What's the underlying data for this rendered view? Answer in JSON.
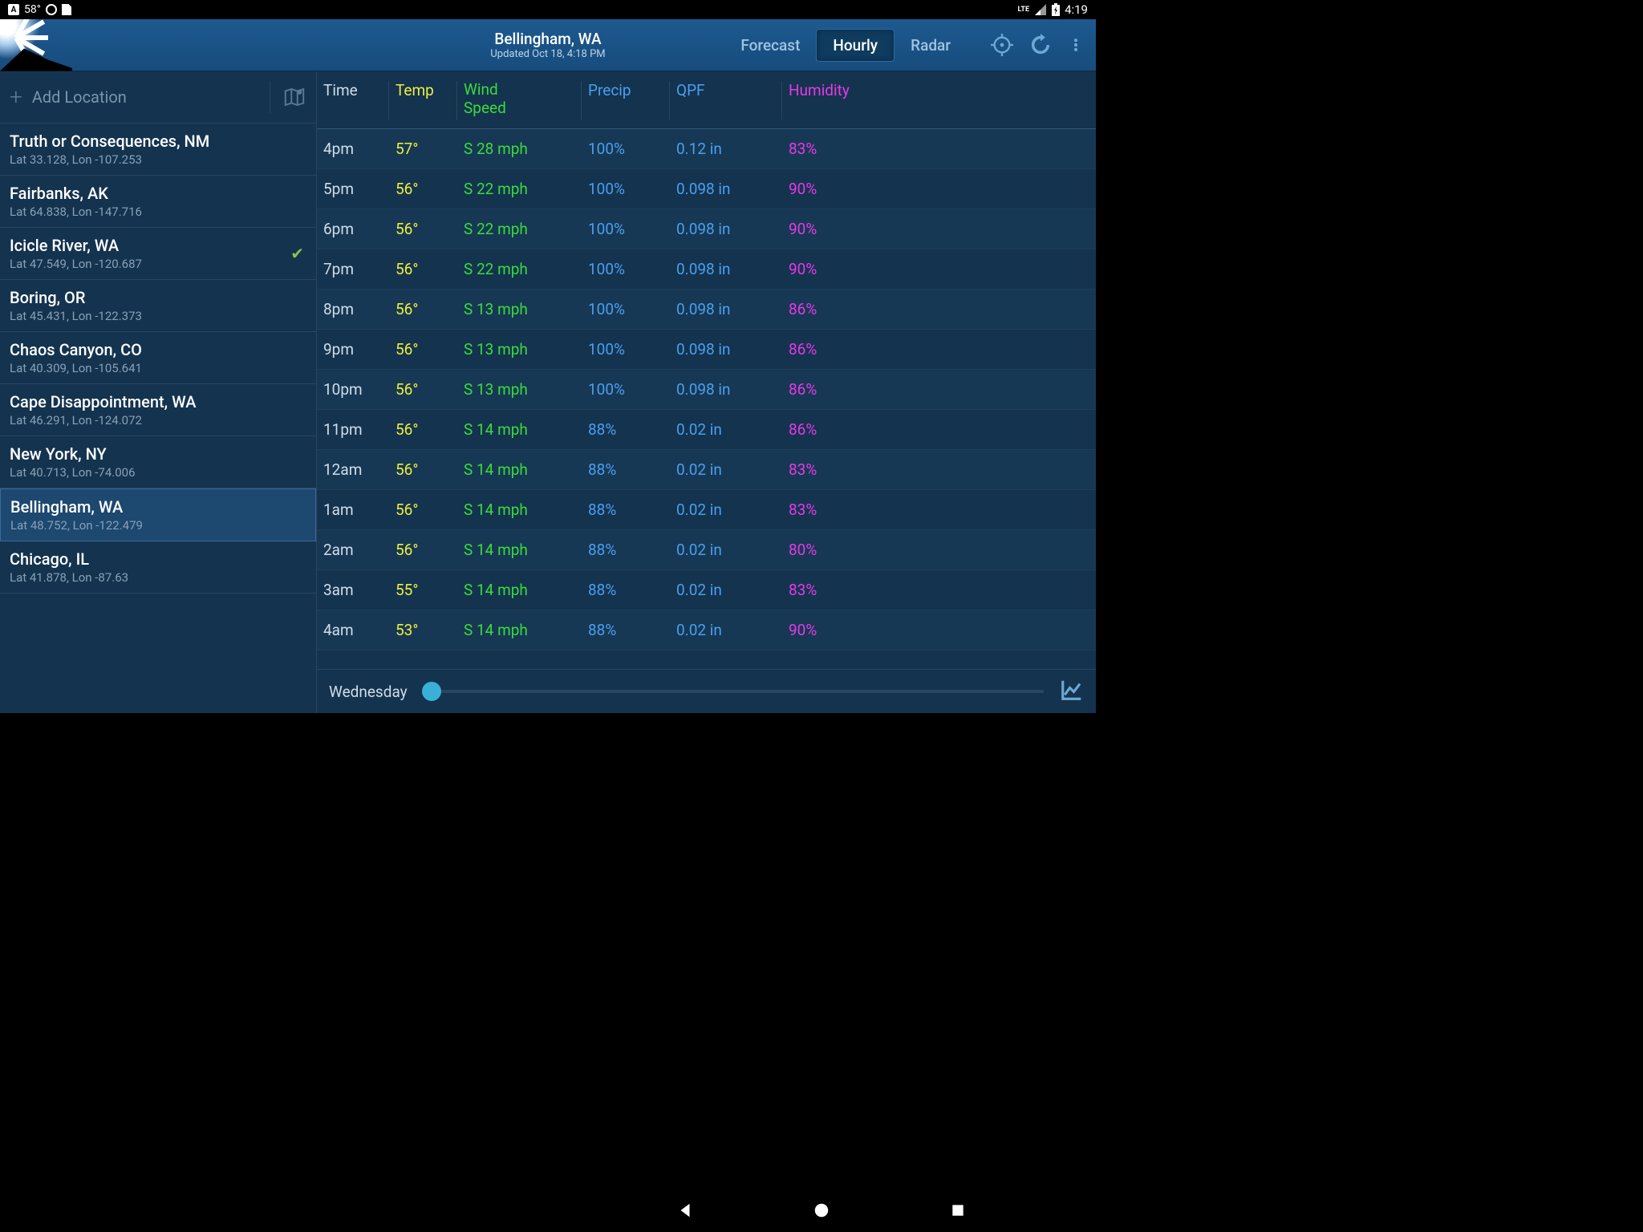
{
  "status": {
    "temp": "58°",
    "network": "LTE",
    "time": "4:19"
  },
  "header": {
    "location": "Bellingham, WA",
    "updated": "Updated Oct 18, 4:18 PM",
    "tabs": {
      "forecast": "Forecast",
      "hourly": "Hourly",
      "radar": "Radar"
    }
  },
  "sidebar": {
    "add_label": "Add Location",
    "locations": [
      {
        "name": "Truth or Consequences, NM",
        "coords": "Lat 33.128, Lon -107.253",
        "checked": false,
        "selected": false
      },
      {
        "name": "Fairbanks, AK",
        "coords": "Lat 64.838, Lon -147.716",
        "checked": false,
        "selected": false
      },
      {
        "name": "Icicle River, WA",
        "coords": "Lat 47.549, Lon -120.687",
        "checked": true,
        "selected": false
      },
      {
        "name": "Boring, OR",
        "coords": "Lat 45.431, Lon -122.373",
        "checked": false,
        "selected": false
      },
      {
        "name": "Chaos Canyon, CO",
        "coords": "Lat 40.309, Lon -105.641",
        "checked": false,
        "selected": false
      },
      {
        "name": "Cape Disappointment, WA",
        "coords": "Lat 46.291, Lon -124.072",
        "checked": false,
        "selected": false
      },
      {
        "name": "New York, NY",
        "coords": "Lat 40.713, Lon -74.006",
        "checked": false,
        "selected": false
      },
      {
        "name": "Bellingham, WA",
        "coords": "Lat 48.752, Lon -122.479",
        "checked": false,
        "selected": true
      },
      {
        "name": "Chicago, IL",
        "coords": "Lat 41.878, Lon -87.63",
        "checked": false,
        "selected": false
      }
    ]
  },
  "table": {
    "headers": {
      "time": "Time",
      "temp": "Temp",
      "wind1": "Wind",
      "wind2": "Speed",
      "precip": "Precip",
      "qpf": "QPF",
      "humidity": "Humidity"
    },
    "rows": [
      {
        "time": "4pm",
        "temp": "57°",
        "wind": "S 28 mph",
        "precip": "100%",
        "qpf": "0.12 in",
        "humidity": "83%"
      },
      {
        "time": "5pm",
        "temp": "56°",
        "wind": "S 22 mph",
        "precip": "100%",
        "qpf": "0.098 in",
        "humidity": "90%"
      },
      {
        "time": "6pm",
        "temp": "56°",
        "wind": "S 22 mph",
        "precip": "100%",
        "qpf": "0.098 in",
        "humidity": "90%"
      },
      {
        "time": "7pm",
        "temp": "56°",
        "wind": "S 22 mph",
        "precip": "100%",
        "qpf": "0.098 in",
        "humidity": "90%"
      },
      {
        "time": "8pm",
        "temp": "56°",
        "wind": "S 13 mph",
        "precip": "100%",
        "qpf": "0.098 in",
        "humidity": "86%"
      },
      {
        "time": "9pm",
        "temp": "56°",
        "wind": "S 13 mph",
        "precip": "100%",
        "qpf": "0.098 in",
        "humidity": "86%"
      },
      {
        "time": "10pm",
        "temp": "56°",
        "wind": "S 13 mph",
        "precip": "100%",
        "qpf": "0.098 in",
        "humidity": "86%"
      },
      {
        "time": "11pm",
        "temp": "56°",
        "wind": "S 14 mph",
        "precip": "88%",
        "qpf": "0.02 in",
        "humidity": "86%"
      },
      {
        "time": "12am",
        "temp": "56°",
        "wind": "S 14 mph",
        "precip": "88%",
        "qpf": "0.02 in",
        "humidity": "83%"
      },
      {
        "time": "1am",
        "temp": "56°",
        "wind": "S 14 mph",
        "precip": "88%",
        "qpf": "0.02 in",
        "humidity": "83%"
      },
      {
        "time": "2am",
        "temp": "56°",
        "wind": "S 14 mph",
        "precip": "88%",
        "qpf": "0.02 in",
        "humidity": "80%"
      },
      {
        "time": "3am",
        "temp": "55°",
        "wind": "S 14 mph",
        "precip": "88%",
        "qpf": "0.02 in",
        "humidity": "83%"
      },
      {
        "time": "4am",
        "temp": "53°",
        "wind": "S 14 mph",
        "precip": "88%",
        "qpf": "0.02 in",
        "humidity": "90%"
      }
    ]
  },
  "bottom": {
    "day": "Wednesday"
  },
  "colors": {
    "bg": "#14334f",
    "header_bg": "#174c7d",
    "time_col": "#d0dde8",
    "temp_col": "#eded3e",
    "wind_col": "#3bdb3b",
    "precip_col": "#4a9ff0",
    "qpf_col": "#4a9ff0",
    "humidity_col": "#e838e8",
    "selected_bg": "#1d4870"
  }
}
